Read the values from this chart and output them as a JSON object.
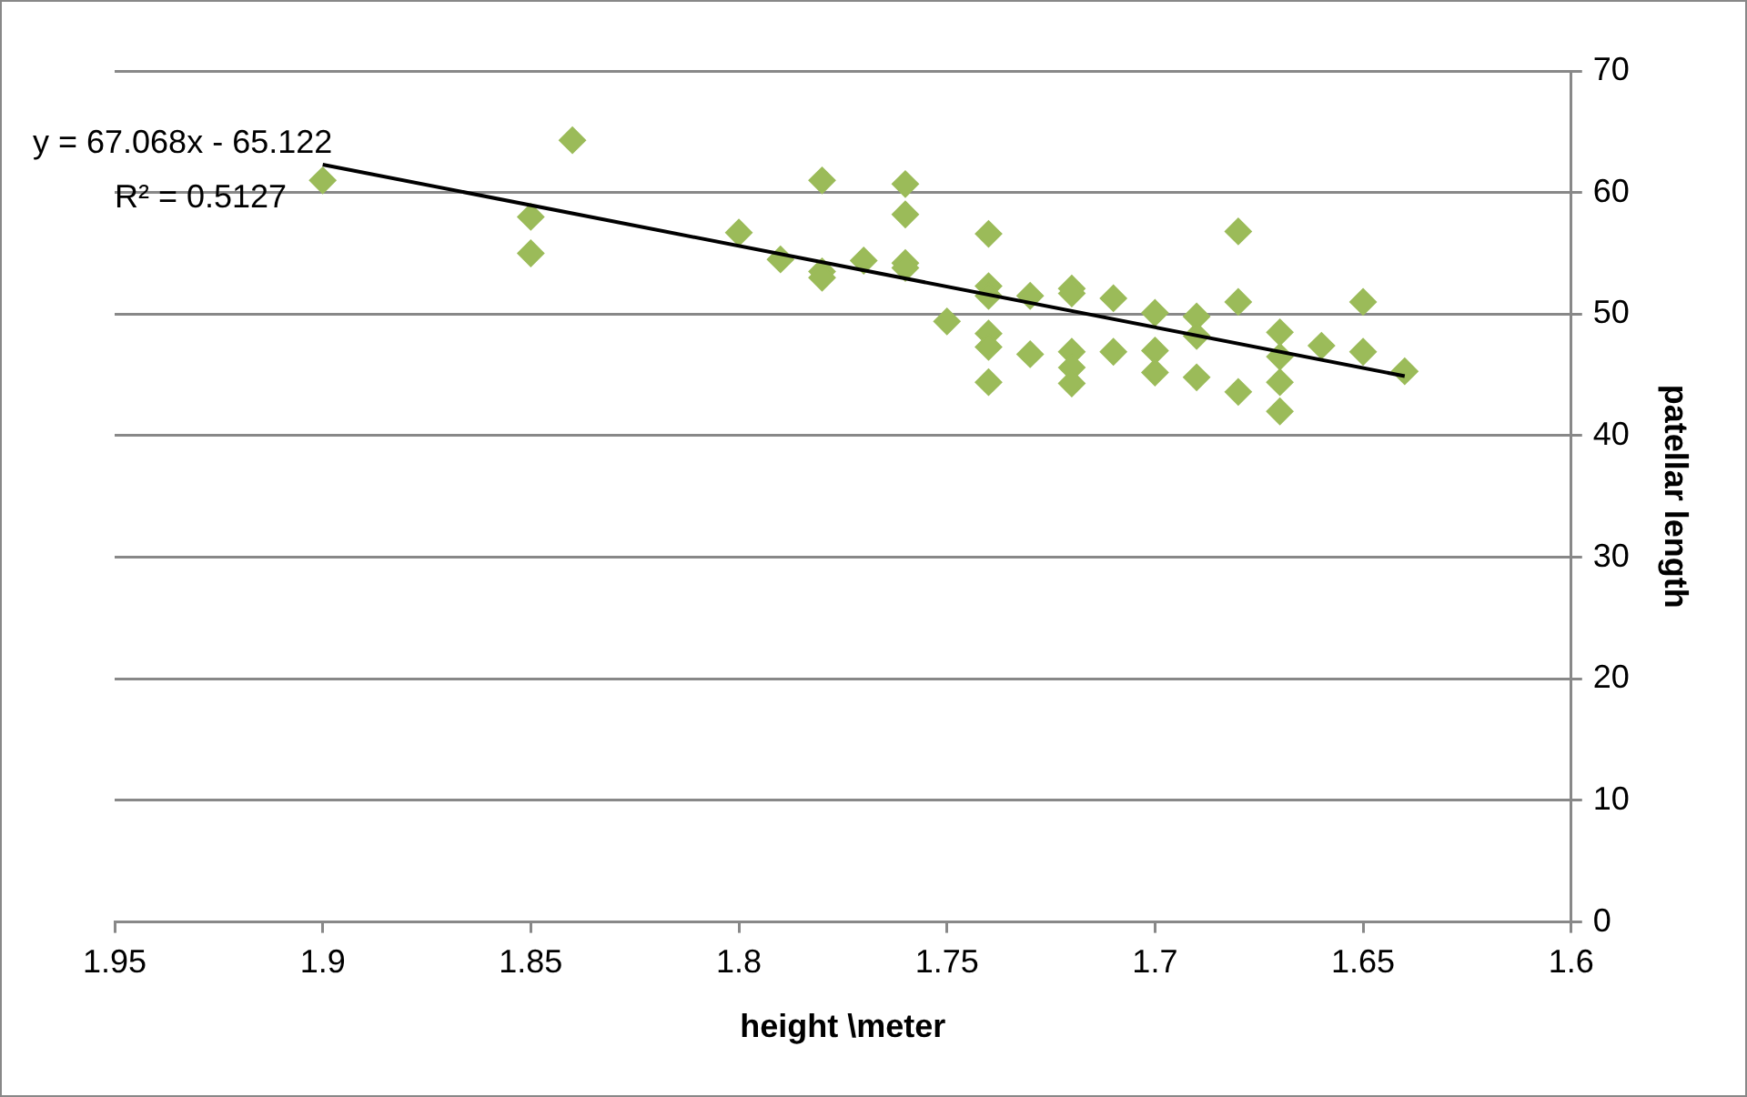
{
  "chart_data": {
    "type": "scatter",
    "xlabel": "height \\meter",
    "ylabel": "patellar length",
    "xlim": [
      1.95,
      1.6
    ],
    "xticks": [
      1.95,
      1.9,
      1.85,
      1.8,
      1.75,
      1.7,
      1.65,
      1.6
    ],
    "ylim": [
      0,
      70
    ],
    "yticks": [
      0,
      10,
      20,
      30,
      40,
      50,
      60,
      70
    ],
    "grid": "y",
    "legend": false,
    "marker": "diamond",
    "annotations": [
      "y = 67.068x - 65.122",
      "R² = 0.5127"
    ],
    "series": [
      {
        "color": "#9bbb59",
        "x": [
          1.9,
          1.85,
          1.85,
          1.84,
          1.8,
          1.79,
          1.78,
          1.78,
          1.78,
          1.77,
          1.76,
          1.76,
          1.76,
          1.76,
          1.75,
          1.74,
          1.74,
          1.74,
          1.74,
          1.74,
          1.74,
          1.73,
          1.73,
          1.72,
          1.72,
          1.72,
          1.72,
          1.72,
          1.71,
          1.71,
          1.7,
          1.7,
          1.7,
          1.69,
          1.69,
          1.69,
          1.68,
          1.68,
          1.68,
          1.67,
          1.67,
          1.67,
          1.67,
          1.66,
          1.65,
          1.65,
          1.64
        ],
        "values": [
          61,
          58,
          55,
          64.3,
          56.7,
          54.5,
          61,
          53.5,
          53,
          54.4,
          60.7,
          58.2,
          54.2,
          53.8,
          49.4,
          56.6,
          52.3,
          51.5,
          48.4,
          47.3,
          44.4,
          51.5,
          46.7,
          52.1,
          51.7,
          46.9,
          45.6,
          44.3,
          51.3,
          46.9,
          50.1,
          47,
          45.2,
          49.8,
          48.2,
          44.8,
          56.8,
          51,
          43.6,
          48.5,
          46.5,
          44.4,
          42,
          47.4,
          51,
          46.9,
          45.3
        ]
      },
      {
        "type": "line",
        "color": "#000000",
        "marker": "none",
        "x": [
          1.9,
          1.64
        ],
        "values": [
          62.3,
          44.9
        ]
      }
    ]
  }
}
